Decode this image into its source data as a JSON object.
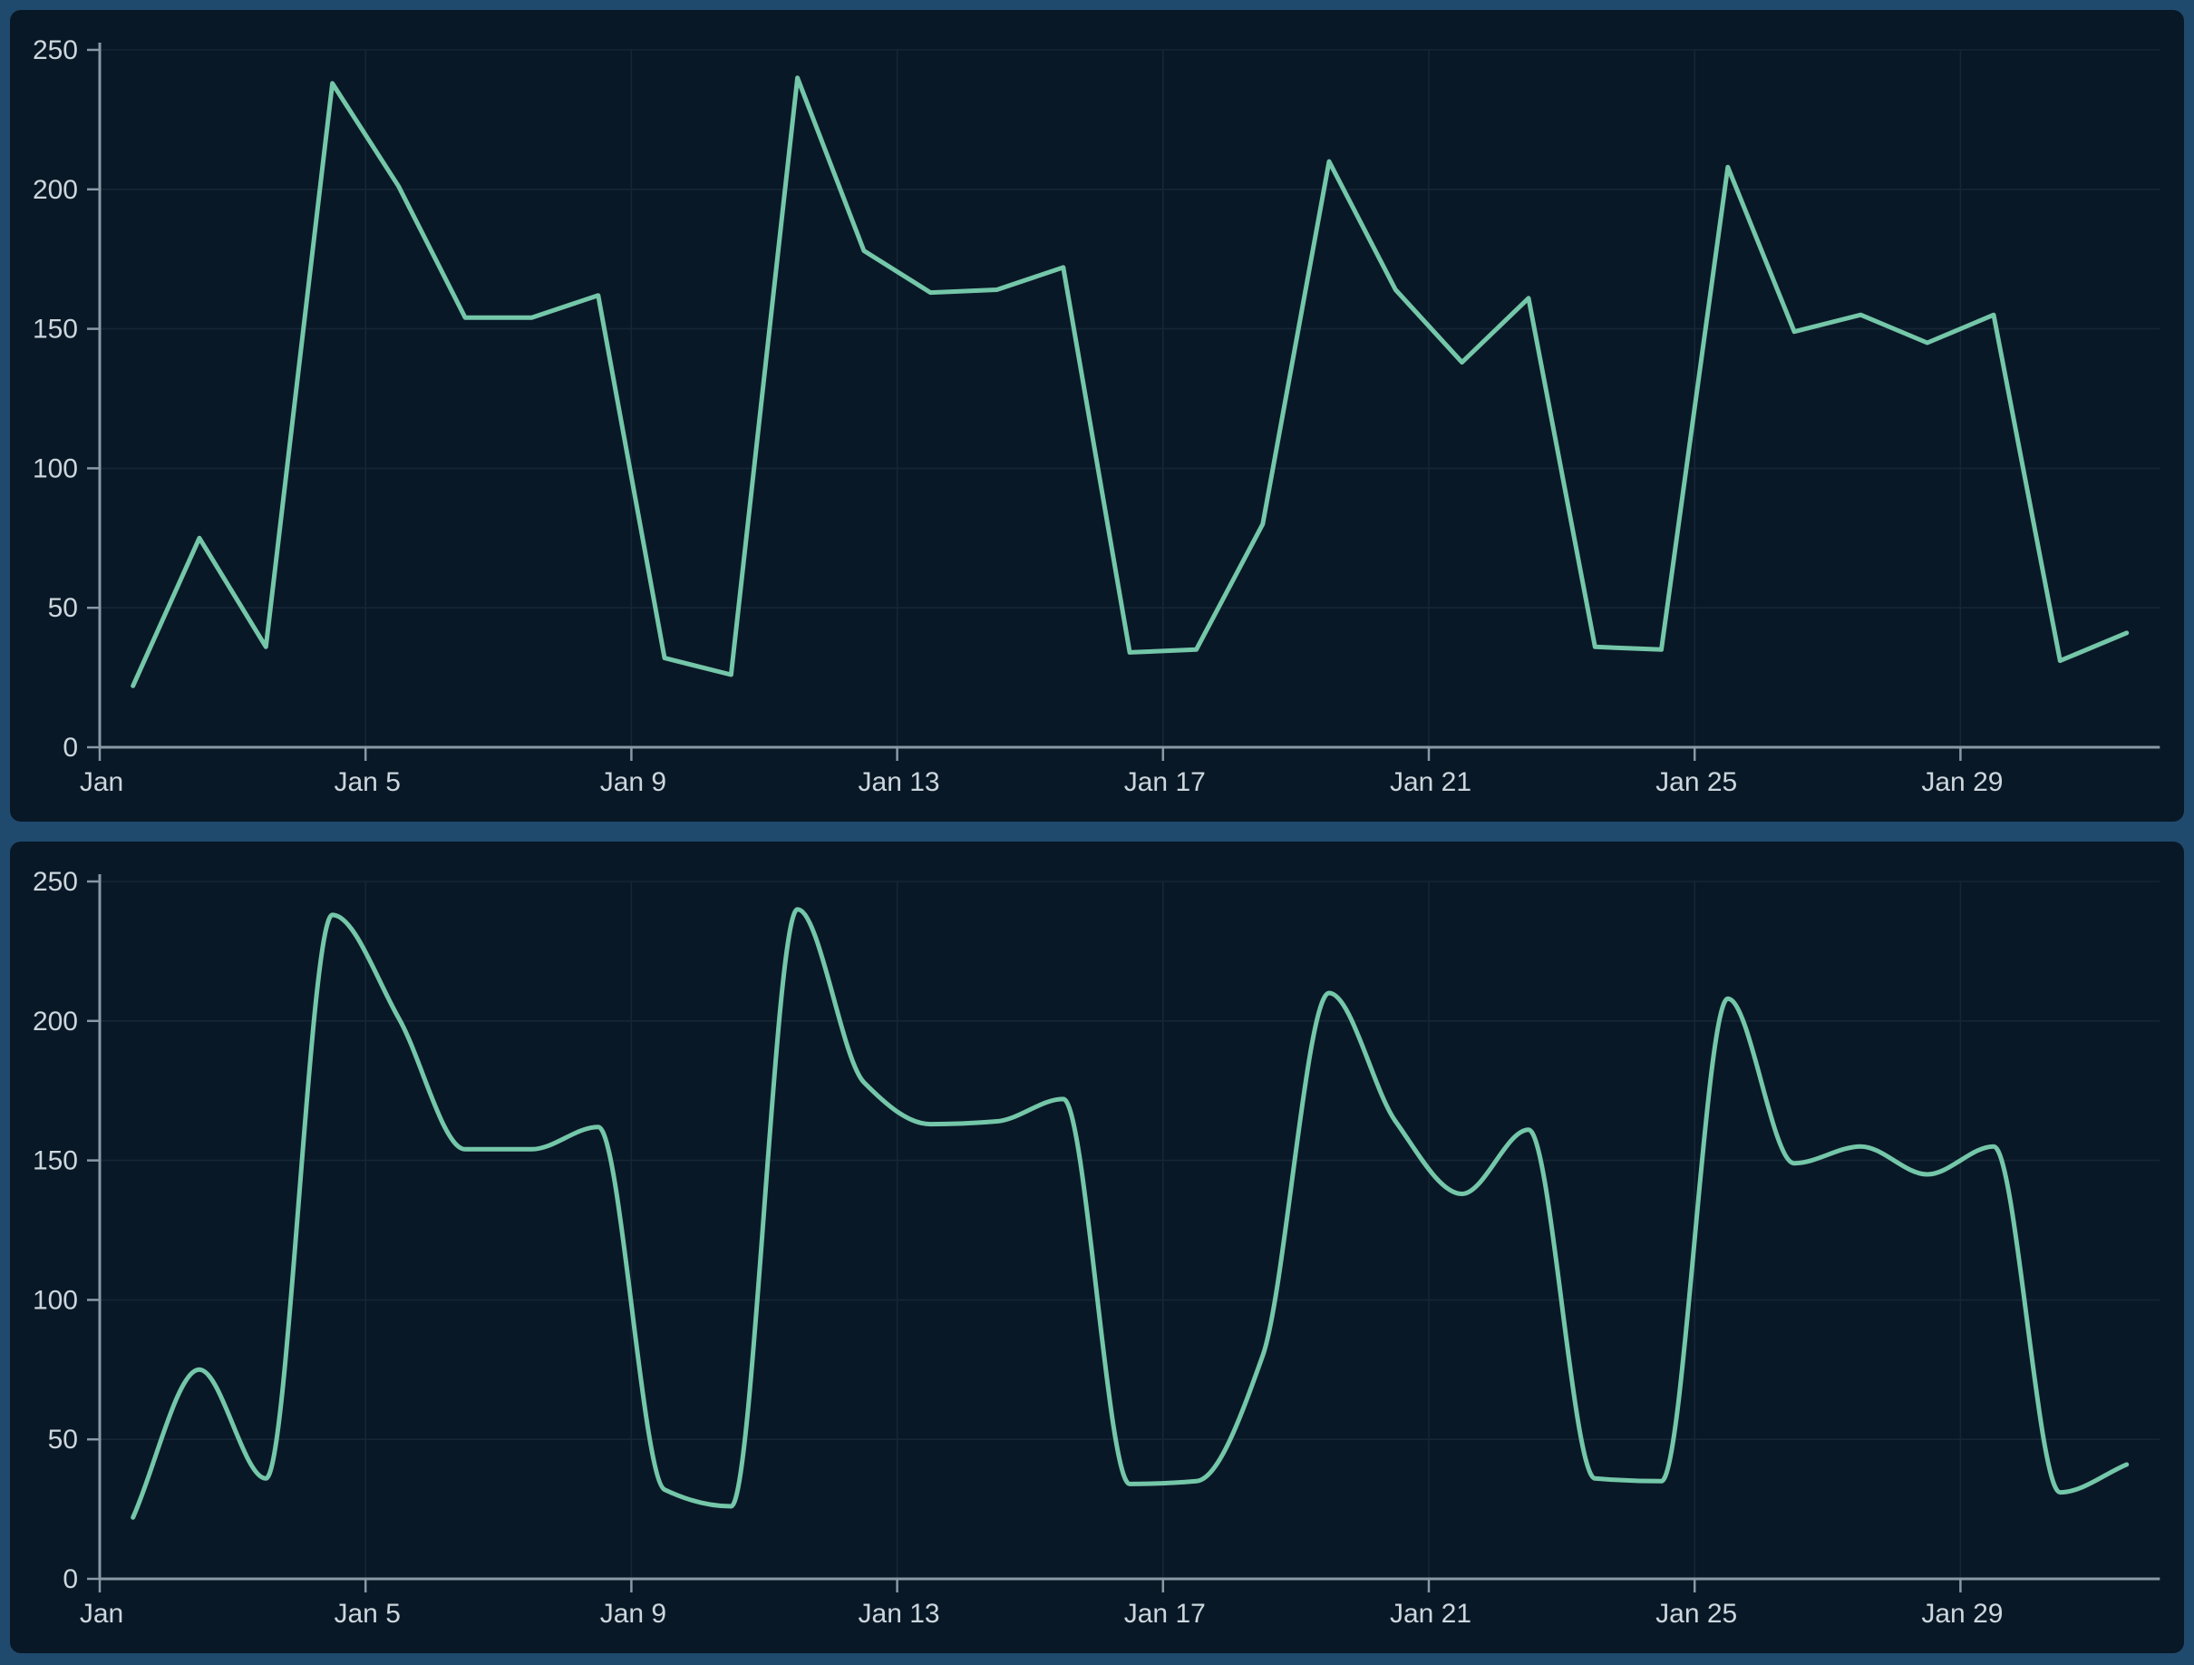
{
  "page": {
    "background_color": "#1f4a6e",
    "panel_color": "#091826",
    "grid_color": "#152636",
    "axis_color": "#8a99a5",
    "label_color": "#ccd6dd"
  },
  "chart_data": [
    {
      "type": "line",
      "title": "",
      "xlabel": "",
      "ylabel": "",
      "curve": "linear",
      "line_color": "#74c7a9",
      "grid": true,
      "legend_position": "none",
      "ylim": [
        0,
        250
      ],
      "y_ticks": [
        0,
        50,
        100,
        150,
        200,
        250
      ],
      "x_days": [
        1,
        2,
        3,
        4,
        5,
        6,
        7,
        8,
        9,
        10,
        11,
        12,
        13,
        14,
        15,
        16,
        17,
        18,
        19,
        20,
        21,
        22,
        23,
        24,
        25,
        26,
        27,
        28,
        29,
        30,
        31
      ],
      "values": [
        22,
        75,
        36,
        238,
        201,
        154,
        154,
        162,
        32,
        26,
        240,
        178,
        163,
        164,
        172,
        34,
        35,
        80,
        210,
        164,
        138,
        161,
        36,
        35,
        208,
        149,
        155,
        145,
        155,
        31,
        41
      ],
      "x_ticks": [
        {
          "day": 1,
          "label": "Jan"
        },
        {
          "day": 5,
          "label": "Jan 5"
        },
        {
          "day": 9,
          "label": "Jan 9"
        },
        {
          "day": 13,
          "label": "Jan 13"
        },
        {
          "day": 17,
          "label": "Jan 17"
        },
        {
          "day": 21,
          "label": "Jan 21"
        },
        {
          "day": 25,
          "label": "Jan 25"
        },
        {
          "day": 29,
          "label": "Jan 29"
        }
      ]
    },
    {
      "type": "line",
      "title": "",
      "xlabel": "",
      "ylabel": "",
      "curve": "monotone",
      "line_color": "#74c7a9",
      "grid": true,
      "legend_position": "none",
      "ylim": [
        0,
        250
      ],
      "y_ticks": [
        0,
        50,
        100,
        150,
        200,
        250
      ],
      "x_days": [
        1,
        2,
        3,
        4,
        5,
        6,
        7,
        8,
        9,
        10,
        11,
        12,
        13,
        14,
        15,
        16,
        17,
        18,
        19,
        20,
        21,
        22,
        23,
        24,
        25,
        26,
        27,
        28,
        29,
        30,
        31
      ],
      "values": [
        22,
        75,
        36,
        238,
        201,
        154,
        154,
        162,
        32,
        26,
        240,
        178,
        163,
        164,
        172,
        34,
        35,
        80,
        210,
        164,
        138,
        161,
        36,
        35,
        208,
        149,
        155,
        145,
        155,
        31,
        41
      ],
      "x_ticks": [
        {
          "day": 1,
          "label": "Jan"
        },
        {
          "day": 5,
          "label": "Jan 5"
        },
        {
          "day": 9,
          "label": "Jan 9"
        },
        {
          "day": 13,
          "label": "Jan 13"
        },
        {
          "day": 17,
          "label": "Jan 17"
        },
        {
          "day": 21,
          "label": "Jan 21"
        },
        {
          "day": 25,
          "label": "Jan 25"
        },
        {
          "day": 29,
          "label": "Jan 29"
        }
      ]
    }
  ]
}
